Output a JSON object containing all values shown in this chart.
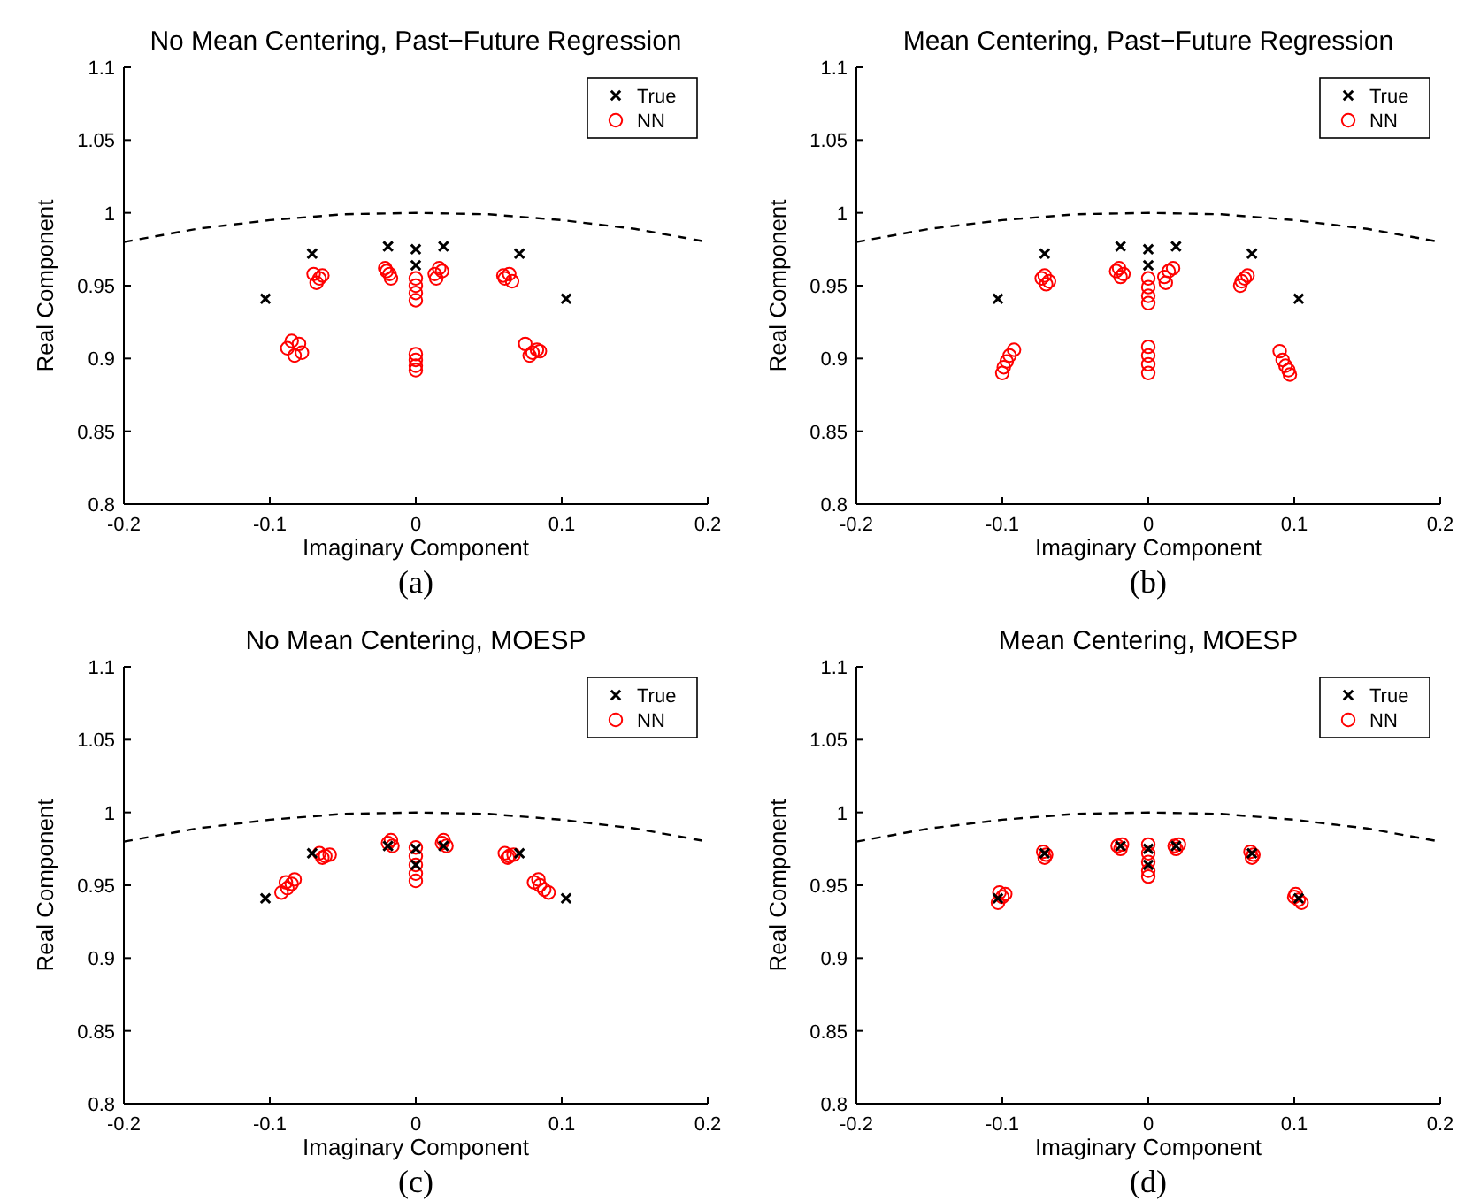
{
  "chart_data": [
    {
      "type": "scatter",
      "title": "No Mean Centering, Past−Future Regression",
      "xlabel": "Imaginary Component",
      "ylabel": "Real Component",
      "annotations": [
        "(a)"
      ],
      "xlim": [
        -0.2,
        0.2
      ],
      "ylim": [
        0.8,
        1.1
      ],
      "xticks": [
        -0.2,
        -0.1,
        0,
        0.1,
        0.2
      ],
      "yticks": [
        0.8,
        0.85,
        0.9,
        0.95,
        1,
        1.05,
        1.1
      ],
      "grid": false,
      "legend": "top right",
      "series": [
        {
          "type": "line",
          "color": "#000000",
          "line_style": "dashed",
          "marker": "none",
          "x": [
            -0.2,
            -0.15,
            -0.1,
            -0.05,
            0,
            0.05,
            0.1,
            0.15,
            0.2
          ],
          "values": [
            0.98,
            0.989,
            0.995,
            0.999,
            1,
            0.999,
            0.995,
            0.989,
            0.98
          ]
        },
        {
          "name": "True",
          "color": "#000000",
          "marker": "cross",
          "x": [
            -0.103,
            -0.071,
            -0.019,
            0,
            0,
            0.019,
            0.071,
            0.103
          ],
          "values": [
            0.941,
            0.972,
            0.977,
            0.975,
            0.964,
            0.977,
            0.972,
            0.941
          ]
        },
        {
          "name": "NN",
          "color": "#ff0000",
          "marker": "circle",
          "x": [
            -0.07,
            -0.066,
            -0.068,
            -0.064,
            -0.088,
            -0.083,
            -0.08,
            -0.085,
            -0.078,
            -0.021,
            -0.018,
            -0.017,
            -0.02,
            0.013,
            0.016,
            0.018,
            0.014,
            0,
            0,
            0,
            0,
            0,
            0,
            0,
            0,
            0.061,
            0.064,
            0.066,
            0.06,
            0.075,
            0.08,
            0.083,
            0.078,
            0.085
          ],
          "values": [
            0.958,
            0.955,
            0.952,
            0.957,
            0.907,
            0.902,
            0.91,
            0.912,
            0.904,
            0.962,
            0.958,
            0.955,
            0.96,
            0.958,
            0.962,
            0.96,
            0.955,
            0.955,
            0.95,
            0.945,
            0.94,
            0.903,
            0.899,
            0.895,
            0.892,
            0.955,
            0.958,
            0.953,
            0.957,
            0.91,
            0.904,
            0.906,
            0.902,
            0.905
          ]
        }
      ]
    },
    {
      "type": "scatter",
      "title": "Mean Centering, Past−Future Regression",
      "xlabel": "Imaginary Component",
      "ylabel": "Real Component",
      "annotations": [
        "(b)"
      ],
      "xlim": [
        -0.2,
        0.2
      ],
      "ylim": [
        0.8,
        1.1
      ],
      "xticks": [
        -0.2,
        -0.1,
        0,
        0.1,
        0.2
      ],
      "yticks": [
        0.8,
        0.85,
        0.9,
        0.95,
        1,
        1.05,
        1.1
      ],
      "grid": false,
      "legend": "top right",
      "series": [
        {
          "type": "line",
          "color": "#000000",
          "line_style": "dashed",
          "marker": "none",
          "x": [
            -0.2,
            -0.15,
            -0.1,
            -0.05,
            0,
            0.05,
            0.1,
            0.15,
            0.2
          ],
          "values": [
            0.98,
            0.989,
            0.995,
            0.999,
            1,
            0.999,
            0.995,
            0.989,
            0.98
          ]
        },
        {
          "name": "True",
          "color": "#000000",
          "marker": "cross",
          "x": [
            -0.103,
            -0.071,
            -0.019,
            0,
            0,
            0.019,
            0.071,
            0.103
          ],
          "values": [
            0.941,
            0.972,
            0.977,
            0.975,
            0.964,
            0.977,
            0.972,
            0.941
          ]
        },
        {
          "name": "NN",
          "color": "#ff0000",
          "marker": "circle",
          "x": [
            -0.073,
            -0.07,
            -0.068,
            -0.071,
            -0.1,
            -0.099,
            -0.097,
            -0.095,
            -0.092,
            -0.022,
            -0.019,
            -0.017,
            -0.02,
            0.011,
            0.014,
            0.017,
            0.012,
            0,
            0,
            0,
            0,
            0,
            0,
            0,
            0,
            0.063,
            0.066,
            0.068,
            0.064,
            0.09,
            0.092,
            0.094,
            0.096,
            0.097
          ],
          "values": [
            0.955,
            0.951,
            0.953,
            0.957,
            0.89,
            0.894,
            0.898,
            0.902,
            0.906,
            0.96,
            0.956,
            0.958,
            0.962,
            0.956,
            0.96,
            0.962,
            0.952,
            0.955,
            0.949,
            0.943,
            0.938,
            0.908,
            0.902,
            0.896,
            0.89,
            0.95,
            0.955,
            0.957,
            0.953,
            0.905,
            0.899,
            0.895,
            0.892,
            0.889
          ]
        }
      ]
    },
    {
      "type": "scatter",
      "title": "No Mean Centering, MOESP",
      "xlabel": "Imaginary Component",
      "ylabel": "Real Component",
      "annotations": [
        "(c)"
      ],
      "xlim": [
        -0.2,
        0.2
      ],
      "ylim": [
        0.8,
        1.1
      ],
      "xticks": [
        -0.2,
        -0.1,
        0,
        0.1,
        0.2
      ],
      "yticks": [
        0.8,
        0.85,
        0.9,
        0.95,
        1,
        1.05,
        1.1
      ],
      "grid": false,
      "legend": "top right",
      "series": [
        {
          "type": "line",
          "color": "#000000",
          "line_style": "dashed",
          "marker": "none",
          "x": [
            -0.2,
            -0.15,
            -0.1,
            -0.05,
            0,
            0.05,
            0.1,
            0.15,
            0.2
          ],
          "values": [
            0.98,
            0.989,
            0.995,
            0.999,
            1,
            0.999,
            0.995,
            0.989,
            0.98
          ]
        },
        {
          "name": "True",
          "color": "#000000",
          "marker": "cross",
          "x": [
            -0.103,
            -0.071,
            -0.019,
            0,
            0,
            0.019,
            0.071,
            0.103
          ],
          "values": [
            0.941,
            0.972,
            0.977,
            0.975,
            0.964,
            0.977,
            0.972,
            0.941
          ]
        },
        {
          "name": "NN",
          "color": "#ff0000",
          "marker": "circle",
          "x": [
            -0.066,
            -0.062,
            -0.059,
            -0.064,
            -0.092,
            -0.088,
            -0.085,
            -0.083,
            -0.089,
            -0.019,
            -0.016,
            -0.017,
            0.018,
            0.021,
            0.019,
            0,
            0,
            0,
            0,
            0,
            0.061,
            0.064,
            0.067,
            0.063,
            0.081,
            0.085,
            0.088,
            0.091,
            0.084
          ],
          "values": [
            0.972,
            0.97,
            0.971,
            0.969,
            0.945,
            0.948,
            0.951,
            0.954,
            0.952,
            0.979,
            0.977,
            0.981,
            0.979,
            0.977,
            0.981,
            0.976,
            0.97,
            0.964,
            0.958,
            0.953,
            0.972,
            0.97,
            0.971,
            0.969,
            0.952,
            0.95,
            0.947,
            0.945,
            0.954
          ]
        }
      ]
    },
    {
      "type": "scatter",
      "title": "Mean Centering, MOESP",
      "xlabel": "Imaginary Component",
      "ylabel": "Real Component",
      "annotations": [
        "(d)"
      ],
      "xlim": [
        -0.2,
        0.2
      ],
      "ylim": [
        0.8,
        1.1
      ],
      "xticks": [
        -0.2,
        -0.1,
        0,
        0.1,
        0.2
      ],
      "yticks": [
        0.8,
        0.85,
        0.9,
        0.95,
        1,
        1.05,
        1.1
      ],
      "grid": false,
      "legend": "top right",
      "series": [
        {
          "type": "line",
          "color": "#000000",
          "line_style": "dashed",
          "marker": "none",
          "x": [
            -0.2,
            -0.15,
            -0.1,
            -0.05,
            0,
            0.05,
            0.1,
            0.15,
            0.2
          ],
          "values": [
            0.98,
            0.989,
            0.995,
            0.999,
            1,
            0.999,
            0.995,
            0.989,
            0.98
          ]
        },
        {
          "name": "True",
          "color": "#000000",
          "marker": "cross",
          "x": [
            -0.103,
            -0.071,
            -0.019,
            0,
            0,
            0.019,
            0.071,
            0.103
          ],
          "values": [
            0.941,
            0.972,
            0.977,
            0.975,
            0.964,
            0.977,
            0.972,
            0.941
          ]
        },
        {
          "name": "NN",
          "color": "#ff0000",
          "marker": "circle",
          "x": [
            -0.103,
            -0.1,
            -0.098,
            -0.102,
            -0.072,
            -0.07,
            -0.071,
            -0.021,
            -0.018,
            -0.019,
            0,
            0,
            0,
            0,
            0,
            0.018,
            0.021,
            0.019,
            0.07,
            0.072,
            0.071,
            0.101,
            0.103,
            0.105,
            0.1
          ],
          "values": [
            0.938,
            0.942,
            0.944,
            0.945,
            0.973,
            0.971,
            0.969,
            0.977,
            0.978,
            0.975,
            0.978,
            0.972,
            0.966,
            0.96,
            0.956,
            0.977,
            0.978,
            0.975,
            0.973,
            0.971,
            0.969,
            0.944,
            0.94,
            0.938,
            0.942
          ]
        }
      ]
    }
  ]
}
